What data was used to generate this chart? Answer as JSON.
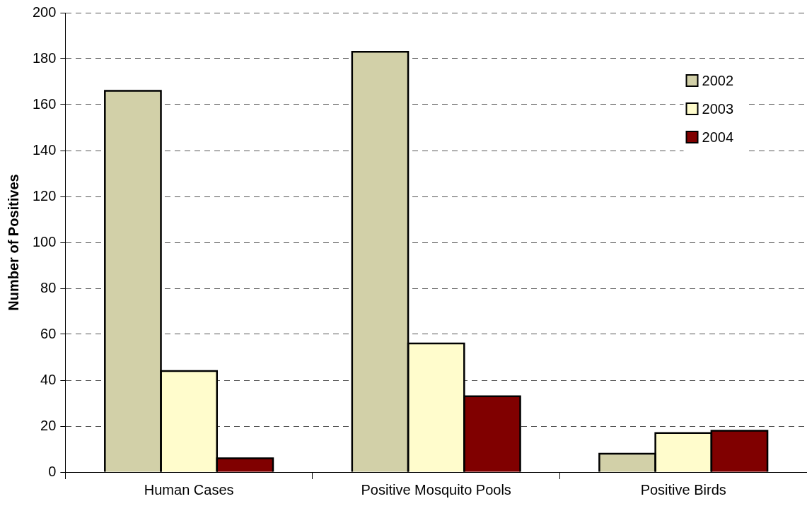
{
  "chart_data": {
    "type": "bar",
    "ylabel": "Number of Positives",
    "categories": [
      "Human Cases",
      "Positive Mosquito Pools",
      "Positive Birds"
    ],
    "series": [
      {
        "name": "2002",
        "color": "#d2d0a8",
        "values": [
          166,
          183,
          8
        ]
      },
      {
        "name": "2003",
        "color": "#fffccc",
        "values": [
          44,
          56,
          17
        ]
      },
      {
        "name": "2004",
        "color": "#800000",
        "values": [
          6,
          33,
          18
        ]
      }
    ],
    "ylim": [
      0,
      200
    ],
    "yticks": [
      0,
      20,
      40,
      60,
      80,
      100,
      120,
      140,
      160,
      180,
      200
    ],
    "grid": "y",
    "legend": "top right"
  }
}
